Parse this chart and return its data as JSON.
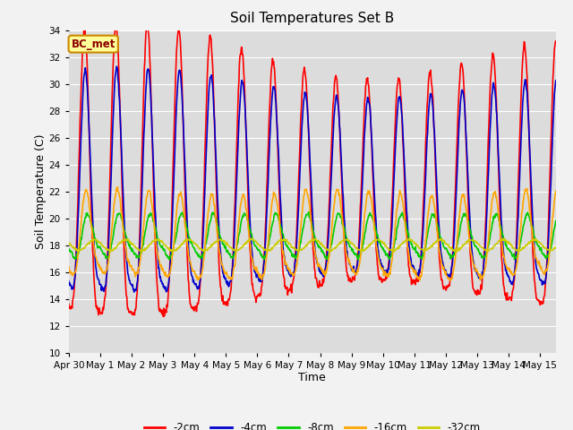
{
  "title": "Soil Temperatures Set B",
  "xlabel": "Time",
  "ylabel": "Soil Temperature (C)",
  "ylim": [
    10,
    34
  ],
  "yticks": [
    10,
    12,
    14,
    16,
    18,
    20,
    22,
    24,
    26,
    28,
    30,
    32,
    34
  ],
  "series": {
    "-2cm": {
      "color": "#FF0000",
      "lw": 1.2
    },
    "-4cm": {
      "color": "#0000CC",
      "lw": 1.2
    },
    "-8cm": {
      "color": "#00CC00",
      "lw": 1.2
    },
    "-16cm": {
      "color": "#FFA500",
      "lw": 1.2
    },
    "-32cm": {
      "color": "#CCCC00",
      "lw": 1.2
    }
  },
  "bg_color": "#DCDCDC",
  "grid_color": "#FFFFFF",
  "annotation_text": "BC_met",
  "annotation_bg": "#FFFF99",
  "annotation_border": "#CC8800"
}
